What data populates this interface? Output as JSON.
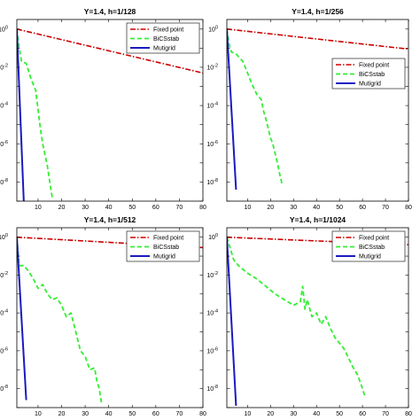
{
  "colors": {
    "Fixed point": "#cc0000",
    "BiCSstab": "#33ee33",
    "Mutigrid": "#1a1abf"
  },
  "chart_data": [
    {
      "type": "line",
      "title": "Y=1.4, h=1/128",
      "xlabel": "",
      "ylabel": "",
      "xlim": [
        1,
        80
      ],
      "ylim": [
        -9,
        0.5
      ],
      "yscale": "log10",
      "xticks": [
        10,
        20,
        30,
        40,
        50,
        60,
        70,
        80
      ],
      "yticks": [
        0,
        -2,
        -4,
        -6,
        -8
      ],
      "ytick_labels": [
        "10^0",
        "10^-2",
        "10^-4",
        "10^-6",
        "10^-8"
      ],
      "legend": "top-right",
      "series": [
        {
          "name": "Fixed point",
          "style": "dashdot",
          "x": [
            1,
            80
          ],
          "y": [
            0,
            -2.3
          ]
        },
        {
          "name": "BiCSstab",
          "style": "dashed",
          "x": [
            1,
            2,
            3,
            5,
            7,
            9,
            10,
            11,
            12,
            13,
            14,
            15,
            16
          ],
          "y": [
            0,
            -1.0,
            -1.7,
            -1.8,
            -2.6,
            -3.2,
            -4.2,
            -5.2,
            -6.0,
            -6.6,
            -7.2,
            -8.0,
            -8.8
          ]
        },
        {
          "name": "Mutigrid",
          "style": "solid",
          "x": [
            1,
            4
          ],
          "y": [
            0,
            -9.2
          ]
        }
      ]
    },
    {
      "type": "line",
      "title": "Y=1.4, h=1/256",
      "xlabel": "",
      "ylabel": "",
      "xlim": [
        1,
        80
      ],
      "ylim": [
        -9,
        0.5
      ],
      "yscale": "log10",
      "xticks": [
        10,
        20,
        30,
        40,
        50,
        60,
        70,
        80
      ],
      "yticks": [
        0,
        -2,
        -4,
        -6,
        -8
      ],
      "ytick_labels": [
        "10^0",
        "10^-2",
        "10^-4",
        "10^-6",
        "10^-8"
      ],
      "legend": "right",
      "series": [
        {
          "name": "Fixed point",
          "style": "dashdot",
          "x": [
            1,
            80
          ],
          "y": [
            0,
            -1.05
          ]
        },
        {
          "name": "BiCSstab",
          "style": "dashed",
          "x": [
            1,
            2,
            3,
            5,
            8,
            10,
            12,
            14,
            16,
            17,
            18,
            19,
            20,
            21,
            22,
            23,
            24,
            25
          ],
          "y": [
            0,
            -0.8,
            -1.2,
            -1.3,
            -1.7,
            -2.3,
            -2.9,
            -3.4,
            -3.7,
            -4.3,
            -4.7,
            -5.2,
            -5.7,
            -6.0,
            -6.5,
            -7.0,
            -7.6,
            -8.1
          ]
        },
        {
          "name": "Mutigrid",
          "style": "solid",
          "x": [
            1,
            5
          ],
          "y": [
            0,
            -8.4
          ]
        }
      ]
    },
    {
      "type": "line",
      "title": "Y=1.4, h=1/512",
      "xlabel": "",
      "ylabel": "",
      "xlim": [
        1,
        80
      ],
      "ylim": [
        -9,
        0.5
      ],
      "yscale": "log10",
      "xticks": [
        10,
        20,
        30,
        40,
        50,
        60,
        70,
        80
      ],
      "yticks": [
        0,
        -2,
        -4,
        -6,
        -8
      ],
      "ytick_labels": [
        "10^0",
        "10^-2",
        "10^-4",
        "10^-6",
        "10^-8"
      ],
      "legend": "top-right",
      "series": [
        {
          "name": "Fixed point",
          "style": "dashdot",
          "x": [
            1,
            80
          ],
          "y": [
            0,
            -0.55
          ]
        },
        {
          "name": "BiCSstab",
          "style": "dashed",
          "x": [
            1,
            2,
            4,
            6,
            8,
            10,
            12,
            14,
            16,
            18,
            20,
            22,
            24,
            26,
            28,
            30,
            32,
            34,
            35,
            36,
            37
          ],
          "y": [
            0,
            -1.5,
            -1.5,
            -1.8,
            -2.2,
            -2.7,
            -2.5,
            -3.0,
            -3.3,
            -3.2,
            -3.6,
            -4.2,
            -4.0,
            -5.0,
            -6.0,
            -6.3,
            -7.0,
            -6.9,
            -7.6,
            -8.0,
            -8.8
          ]
        },
        {
          "name": "Mutigrid",
          "style": "solid",
          "x": [
            1,
            5
          ],
          "y": [
            0,
            -8.6
          ]
        }
      ]
    },
    {
      "type": "line",
      "title": "Y=1.4, h=1/1024",
      "xlabel": "",
      "ylabel": "",
      "xlim": [
        1,
        80
      ],
      "ylim": [
        -9,
        0.5
      ],
      "yscale": "log10",
      "xticks": [
        10,
        20,
        30,
        40,
        50,
        60,
        70,
        80
      ],
      "yticks": [
        0,
        -2,
        -4,
        -6,
        -8
      ],
      "ytick_labels": [
        "10^0",
        "10^-2",
        "10^-4",
        "10^-6",
        "10^-8"
      ],
      "legend": "top-right",
      "series": [
        {
          "name": "Fixed point",
          "style": "dashdot",
          "x": [
            1,
            80
          ],
          "y": [
            0,
            -0.4
          ]
        },
        {
          "name": "BiCSstab",
          "style": "dashed",
          "x": [
            1,
            2,
            4,
            6,
            10,
            14,
            18,
            22,
            26,
            30,
            33,
            34,
            35,
            36,
            38,
            40,
            42,
            44,
            46,
            48,
            50,
            52,
            54,
            56,
            58,
            60,
            61
          ],
          "y": [
            0,
            -0.4,
            -1.2,
            -1.5,
            -1.9,
            -2.2,
            -2.6,
            -3.0,
            -3.3,
            -3.6,
            -3.4,
            -2.6,
            -3.8,
            -3.3,
            -4.2,
            -4.0,
            -4.6,
            -4.2,
            -4.8,
            -5.3,
            -5.6,
            -5.9,
            -6.4,
            -6.9,
            -7.3,
            -8.0,
            -8.4
          ]
        },
        {
          "name": "Mutigrid",
          "style": "solid",
          "x": [
            1,
            5
          ],
          "y": [
            0,
            -8.9
          ]
        }
      ]
    }
  ]
}
